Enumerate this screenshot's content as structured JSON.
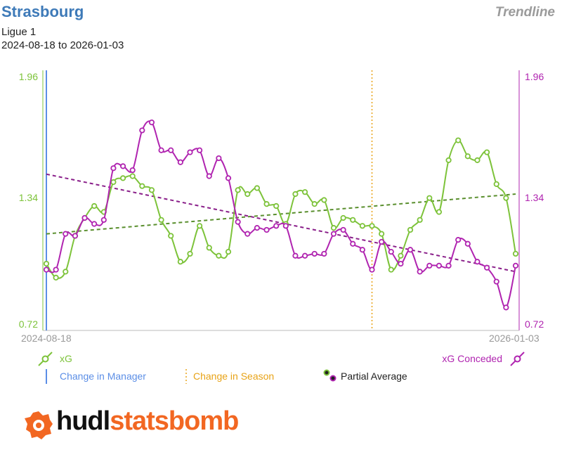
{
  "header": {
    "team": "Strasbourg",
    "badge": "Trendline",
    "league": "Ligue 1",
    "date_range": "2024-08-18 to 2026-01-03"
  },
  "legend": {
    "xg": "xG",
    "xg_conceded": "xG Conceded",
    "manager": "Change in Manager",
    "season": "Change in Season",
    "partial": "Partial Average"
  },
  "brand": {
    "part1": "hudl",
    "part2": "statsbomb"
  },
  "colors": {
    "xg": "#7dc33a",
    "xga": "#b024b0",
    "xg_trend": "#5a8f2e",
    "xga_trend": "#8a1f8a",
    "manager": "#5b8ee6",
    "season": "#e8a317",
    "axis": "#bbbbbb",
    "brand_orange": "#f26722"
  },
  "chart_data": {
    "type": "line",
    "x_start": "2024-08-18",
    "x_end": "2026-01-03",
    "ylim": [
      0.72,
      1.96
    ],
    "yticks": [
      "1.96",
      "1.34",
      "0.72"
    ],
    "xticks": [
      "2024-08-18",
      "2026-01-03"
    ],
    "season_change_index": 34,
    "manager_change_index": 0,
    "series": [
      {
        "name": "xG",
        "values": [
          1.02,
          0.95,
          0.98,
          1.16,
          1.25,
          1.31,
          1.28,
          1.43,
          1.45,
          1.46,
          1.41,
          1.39,
          1.24,
          1.16,
          1.03,
          1.07,
          1.21,
          1.1,
          1.06,
          1.08,
          1.39,
          1.37,
          1.4,
          1.32,
          1.31,
          1.22,
          1.37,
          1.38,
          1.32,
          1.34,
          1.2,
          1.25,
          1.24,
          1.21,
          1.21,
          1.17,
          0.99,
          1.06,
          1.19,
          1.24,
          1.35,
          1.28,
          1.54,
          1.64,
          1.56,
          1.54,
          1.58,
          1.42,
          1.35,
          1.07
        ],
        "trend": [
          1.17,
          1.37
        ]
      },
      {
        "name": "xG Conceded",
        "values": [
          0.99,
          0.99,
          1.17,
          1.16,
          1.25,
          1.22,
          1.24,
          1.5,
          1.51,
          1.49,
          1.69,
          1.73,
          1.59,
          1.59,
          1.53,
          1.58,
          1.59,
          1.46,
          1.55,
          1.45,
          1.23,
          1.17,
          1.2,
          1.19,
          1.21,
          1.21,
          1.06,
          1.06,
          1.07,
          1.07,
          1.17,
          1.19,
          1.12,
          1.09,
          0.99,
          1.13,
          1.08,
          1.02,
          1.09,
          0.98,
          1.01,
          1.01,
          1.01,
          1.14,
          1.12,
          1.03,
          1.0,
          0.93,
          0.8,
          1.01
        ],
        "trend": [
          1.47,
          0.98
        ]
      }
    ]
  }
}
